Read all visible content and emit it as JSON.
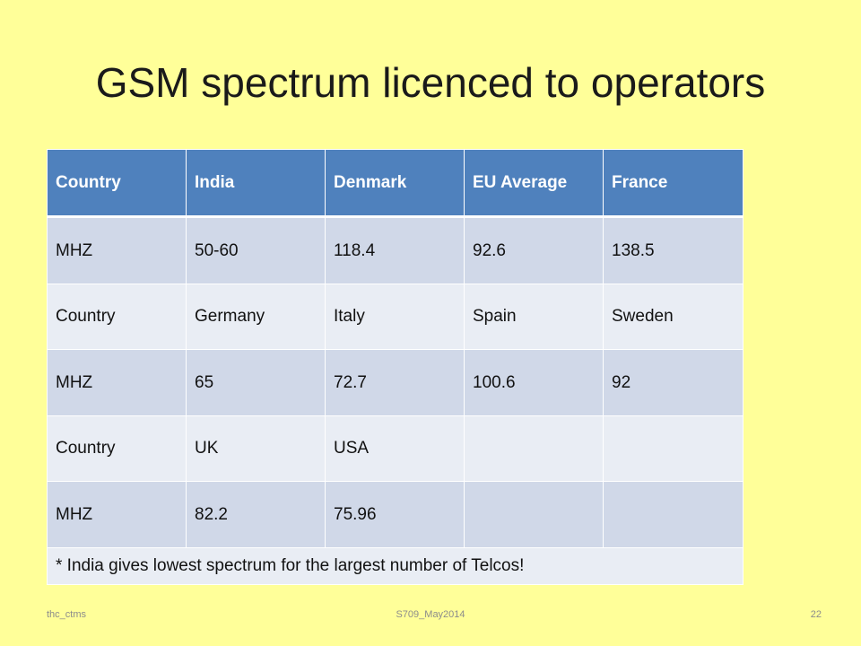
{
  "slide": {
    "title": "GSM spectrum licenced to operators",
    "table": {
      "header": [
        "Country",
        "India",
        "Denmark",
        "EU Average",
        "France"
      ],
      "rows": [
        [
          "MHZ",
          "50-60",
          "118.4",
          "92.6",
          "138.5"
        ],
        [
          "Country",
          "Germany",
          "Italy",
          "Spain",
          "Sweden"
        ],
        [
          "MHZ",
          "65",
          "72.7",
          "100.6",
          "92"
        ],
        [
          "Country",
          "UK",
          "USA",
          "",
          ""
        ],
        [
          "MHZ",
          "82.2",
          "75.96",
          "",
          ""
        ]
      ],
      "note": "* India gives lowest  spectrum for the  largest number of  Telcos!"
    },
    "footer": {
      "left": "thc_ctms",
      "center": "S709_May2014",
      "page_number": "22"
    },
    "colors": {
      "background": "#ffff99",
      "header_fill": "#4f81bd",
      "band_dark": "#d0d8e8",
      "band_light": "#e9edf4"
    }
  }
}
